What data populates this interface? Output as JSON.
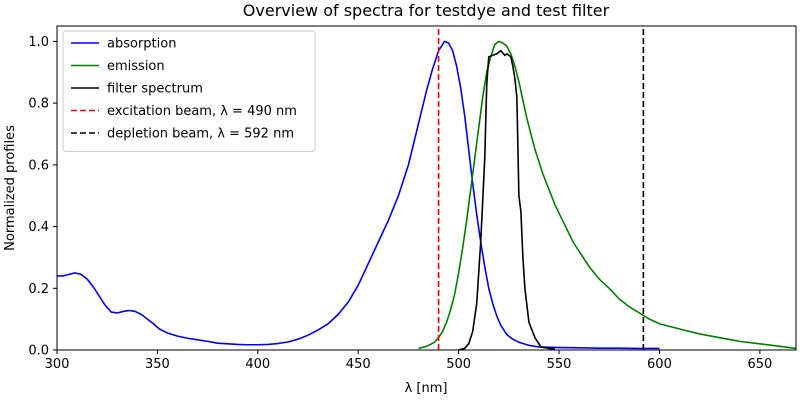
{
  "chart_data": {
    "type": "line",
    "title": "Overview of spectra for testdye and test filter",
    "xlabel": "λ [nm]",
    "ylabel": "Normalized profiles",
    "xlim": [
      300,
      668
    ],
    "ylim": [
      0,
      1.05
    ],
    "xticks": [
      300,
      350,
      400,
      450,
      500,
      550,
      600,
      650
    ],
    "yticks": [
      0.0,
      0.2,
      0.4,
      0.6,
      0.8,
      1.0
    ],
    "grid": false,
    "legend_position": "top-left",
    "series": [
      {
        "name": "absorption",
        "color": "#0000ff",
        "dash": false,
        "points": [
          [
            300,
            0.24
          ],
          [
            303,
            0.24
          ],
          [
            306,
            0.245
          ],
          [
            309,
            0.25
          ],
          [
            312,
            0.245
          ],
          [
            315,
            0.23
          ],
          [
            318,
            0.205
          ],
          [
            321,
            0.175
          ],
          [
            324,
            0.145
          ],
          [
            327,
            0.123
          ],
          [
            330,
            0.12
          ],
          [
            333,
            0.125
          ],
          [
            336,
            0.128
          ],
          [
            339,
            0.125
          ],
          [
            342,
            0.115
          ],
          [
            345,
            0.1
          ],
          [
            348,
            0.085
          ],
          [
            351,
            0.068
          ],
          [
            355,
            0.055
          ],
          [
            360,
            0.045
          ],
          [
            365,
            0.038
          ],
          [
            370,
            0.033
          ],
          [
            375,
            0.028
          ],
          [
            380,
            0.022
          ],
          [
            385,
            0.02
          ],
          [
            390,
            0.018
          ],
          [
            395,
            0.017
          ],
          [
            400,
            0.017
          ],
          [
            405,
            0.018
          ],
          [
            410,
            0.021
          ],
          [
            415,
            0.026
          ],
          [
            420,
            0.035
          ],
          [
            425,
            0.048
          ],
          [
            430,
            0.065
          ],
          [
            435,
            0.085
          ],
          [
            440,
            0.115
          ],
          [
            445,
            0.155
          ],
          [
            450,
            0.21
          ],
          [
            455,
            0.28
          ],
          [
            460,
            0.35
          ],
          [
            465,
            0.42
          ],
          [
            470,
            0.5
          ],
          [
            475,
            0.6
          ],
          [
            478,
            0.68
          ],
          [
            481,
            0.76
          ],
          [
            484,
            0.84
          ],
          [
            487,
            0.91
          ],
          [
            490,
            0.97
          ],
          [
            493,
            1.0
          ],
          [
            495,
            0.995
          ],
          [
            497,
            0.97
          ],
          [
            499,
            0.92
          ],
          [
            501,
            0.85
          ],
          [
            503,
            0.76
          ],
          [
            505,
            0.65
          ],
          [
            507,
            0.54
          ],
          [
            509,
            0.44
          ],
          [
            511,
            0.35
          ],
          [
            513,
            0.27
          ],
          [
            515,
            0.2
          ],
          [
            517,
            0.15
          ],
          [
            519,
            0.11
          ],
          [
            521,
            0.08
          ],
          [
            524,
            0.05
          ],
          [
            527,
            0.035
          ],
          [
            530,
            0.025
          ],
          [
            535,
            0.015
          ],
          [
            540,
            0.01
          ],
          [
            550,
            0.008
          ],
          [
            560,
            0.007
          ],
          [
            570,
            0.006
          ],
          [
            580,
            0.006
          ],
          [
            590,
            0.005
          ],
          [
            600,
            0.005
          ]
        ]
      },
      {
        "name": "emission",
        "color": "#008000",
        "dash": false,
        "points": [
          [
            480,
            0.005
          ],
          [
            484,
            0.012
          ],
          [
            488,
            0.025
          ],
          [
            490,
            0.04
          ],
          [
            492,
            0.06
          ],
          [
            494,
            0.09
          ],
          [
            496,
            0.13
          ],
          [
            498,
            0.18
          ],
          [
            500,
            0.25
          ],
          [
            502,
            0.33
          ],
          [
            504,
            0.42
          ],
          [
            506,
            0.52
          ],
          [
            508,
            0.62
          ],
          [
            510,
            0.72
          ],
          [
            512,
            0.82
          ],
          [
            514,
            0.9
          ],
          [
            516,
            0.95
          ],
          [
            518,
            0.99
          ],
          [
            520,
            1.0
          ],
          [
            522,
            0.995
          ],
          [
            524,
            0.985
          ],
          [
            526,
            0.96
          ],
          [
            528,
            0.92
          ],
          [
            530,
            0.87
          ],
          [
            532,
            0.81
          ],
          [
            534,
            0.75
          ],
          [
            536,
            0.7
          ],
          [
            538,
            0.65
          ],
          [
            540,
            0.61
          ],
          [
            542,
            0.57
          ],
          [
            545,
            0.52
          ],
          [
            548,
            0.47
          ],
          [
            551,
            0.43
          ],
          [
            554,
            0.39
          ],
          [
            557,
            0.35
          ],
          [
            560,
            0.32
          ],
          [
            565,
            0.27
          ],
          [
            570,
            0.23
          ],
          [
            575,
            0.2
          ],
          [
            580,
            0.165
          ],
          [
            585,
            0.14
          ],
          [
            590,
            0.12
          ],
          [
            595,
            0.1
          ],
          [
            600,
            0.085
          ],
          [
            610,
            0.068
          ],
          [
            620,
            0.052
          ],
          [
            630,
            0.04
          ],
          [
            640,
            0.028
          ],
          [
            650,
            0.02
          ],
          [
            660,
            0.012
          ],
          [
            668,
            0.005
          ]
        ]
      },
      {
        "name": "filter spectrum",
        "color": "#000000",
        "dash": false,
        "points": [
          [
            500,
            0.0
          ],
          [
            503,
            0.005
          ],
          [
            505,
            0.02
          ],
          [
            507,
            0.06
          ],
          [
            509,
            0.15
          ],
          [
            511,
            0.35
          ],
          [
            513,
            0.62
          ],
          [
            514,
            0.86
          ],
          [
            515,
            0.95
          ],
          [
            517,
            0.955
          ],
          [
            519,
            0.96
          ],
          [
            521,
            0.97
          ],
          [
            523,
            0.955
          ],
          [
            524,
            0.96
          ],
          [
            526,
            0.95
          ],
          [
            527,
            0.92
          ],
          [
            528,
            0.88
          ],
          [
            529,
            0.82
          ],
          [
            530,
            0.5
          ],
          [
            531,
            0.45
          ],
          [
            532,
            0.3
          ],
          [
            533,
            0.2
          ],
          [
            535,
            0.09
          ],
          [
            538,
            0.04
          ],
          [
            541,
            0.01
          ],
          [
            545,
            0.005
          ],
          [
            548,
            0.003
          ]
        ]
      },
      {
        "name": "excitation beam, λ = 490 nm",
        "color": "#ff0000",
        "dash": true,
        "points": [
          [
            490,
            0.0
          ],
          [
            490,
            1.05
          ]
        ]
      },
      {
        "name": "depletion beam, λ = 592 nm",
        "color": "#000000",
        "dash": true,
        "points": [
          [
            592,
            0.0
          ],
          [
            592,
            1.05
          ]
        ]
      }
    ]
  }
}
